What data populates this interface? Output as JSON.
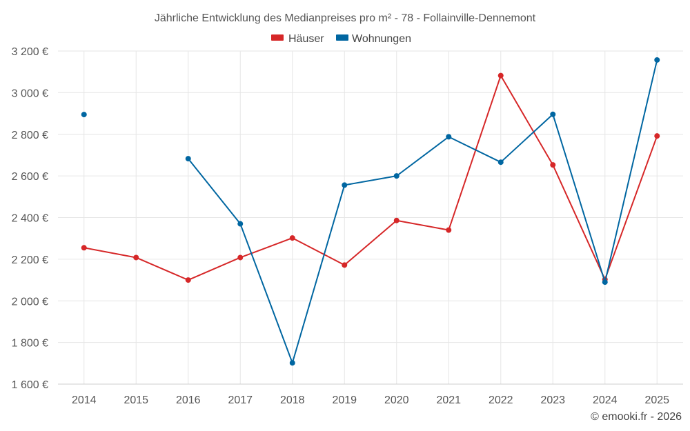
{
  "chart_data": {
    "type": "line",
    "title": "Jährliche Entwicklung des Medianpreises pro m² - 78 - Follainville-Dennemont",
    "categories": [
      "2014",
      "2015",
      "2016",
      "2017",
      "2018",
      "2019",
      "2020",
      "2021",
      "2022",
      "2023",
      "2024",
      "2025"
    ],
    "series": [
      {
        "name": "Häuser",
        "color": "#d62728",
        "values": [
          2255,
          2208,
          2100,
          2208,
          2302,
          2172,
          2386,
          2340,
          3082,
          2653,
          2103,
          2792
        ]
      },
      {
        "name": "Wohnungen",
        "color": "#0066a1",
        "values": [
          2895,
          null,
          2683,
          2370,
          1702,
          2556,
          2600,
          2788,
          2666,
          2896,
          2090,
          3157
        ]
      }
    ],
    "y_ticks": [
      "1 600 €",
      "1 800 €",
      "2 000 €",
      "2 200 €",
      "2 400 €",
      "2 600 €",
      "2 800 €",
      "3 000 €",
      "3 200 €"
    ],
    "ylim": [
      1600,
      3200
    ],
    "xlabel": "",
    "ylabel": "",
    "legend_position": "top-center",
    "grid": true,
    "credit": "© emooki.fr - 2026"
  }
}
